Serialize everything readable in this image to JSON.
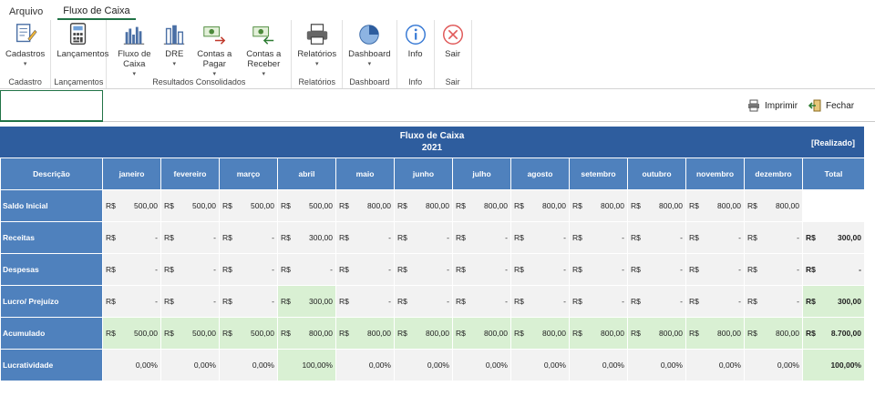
{
  "tabs": [
    "Arquivo",
    "Fluxo de Caixa"
  ],
  "ribbon": {
    "groups": [
      {
        "label": "Cadastro",
        "buttons": [
          {
            "label": "Cadastros",
            "caret": true,
            "icon": "pencil-doc-icon"
          }
        ]
      },
      {
        "label": "Lançamentos",
        "buttons": [
          {
            "label": "Lançamentos",
            "caret": false,
            "icon": "calculator-icon"
          }
        ]
      },
      {
        "label": "Resultados Consolidados",
        "buttons": [
          {
            "label": "Fluxo de Caixa",
            "caret": true,
            "icon": "bar-chart-icon"
          },
          {
            "label": "DRE",
            "caret": true,
            "icon": "column-chart-icon"
          },
          {
            "label": "Contas a Pagar",
            "caret": true,
            "icon": "money-out-icon"
          },
          {
            "label": "Contas a Receber",
            "caret": true,
            "icon": "money-in-icon"
          }
        ]
      },
      {
        "label": "Relatórios",
        "buttons": [
          {
            "label": "Relatórios",
            "caret": true,
            "icon": "printer-icon"
          }
        ]
      },
      {
        "label": "Dashboard",
        "buttons": [
          {
            "label": "Dashboard",
            "caret": true,
            "icon": "pie-chart-icon"
          }
        ]
      },
      {
        "label": "Info",
        "buttons": [
          {
            "label": "Info",
            "caret": false,
            "icon": "info-icon"
          }
        ]
      },
      {
        "label": "Sair",
        "buttons": [
          {
            "label": "Sair",
            "caret": false,
            "icon": "exit-icon"
          }
        ]
      }
    ]
  },
  "topbar": {
    "print_label": "Imprimir",
    "close_label": "Fechar"
  },
  "sheet": {
    "title": "Fluxo de Caixa",
    "year": "2021",
    "status": "[Realizado]",
    "columns": [
      "Descrição",
      "janeiro",
      "fevereiro",
      "março",
      "abril",
      "maio",
      "junho",
      "julho",
      "agosto",
      "setembro",
      "outubro",
      "novembro",
      "dezembro",
      "Total"
    ],
    "currency": "R$",
    "rows": [
      {
        "label": "Saldo Inicial",
        "values": [
          "500,00",
          "500,00",
          "500,00",
          "500,00",
          "800,00",
          "800,00",
          "800,00",
          "800,00",
          "800,00",
          "800,00",
          "800,00",
          "800,00"
        ],
        "total": null
      },
      {
        "label": "Receitas",
        "values": [
          "-",
          "-",
          "-",
          "300,00",
          "-",
          "-",
          "-",
          "-",
          "-",
          "-",
          "-",
          "-"
        ],
        "total": "300,00"
      },
      {
        "label": "Despesas",
        "values": [
          "-",
          "-",
          "-",
          "-",
          "-",
          "-",
          "-",
          "-",
          "-",
          "-",
          "-",
          "-"
        ],
        "total": "-"
      },
      {
        "label": "Lucro/ Prejuízo",
        "values": [
          "-",
          "-",
          "-",
          "300,00",
          "-",
          "-",
          "-",
          "-",
          "-",
          "-",
          "-",
          "-"
        ],
        "total": "300,00",
        "green_cols": [
          3
        ],
        "total_green": true
      },
      {
        "label": "Acumulado",
        "values": [
          "500,00",
          "500,00",
          "500,00",
          "800,00",
          "800,00",
          "800,00",
          "800,00",
          "800,00",
          "800,00",
          "800,00",
          "800,00",
          "800,00"
        ],
        "total": "8.700,00",
        "all_green": true
      },
      {
        "label": "Lucratividade",
        "percent": true,
        "values": [
          "0,00%",
          "0,00%",
          "0,00%",
          "100,00%",
          "0,00%",
          "0,00%",
          "0,00%",
          "0,00%",
          "0,00%",
          "0,00%",
          "0,00%",
          "0,00%"
        ],
        "total": "100,00%",
        "green_cols": [
          3
        ],
        "total_green": true
      }
    ]
  },
  "colors": {
    "header_blue": "#2e5d9e",
    "label_blue": "#4f81bd",
    "green": "#d9f0d3",
    "accent": "#217346"
  }
}
